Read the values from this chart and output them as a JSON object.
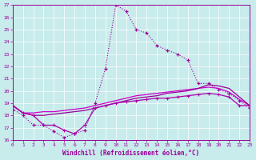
{
  "xlabel": "Windchill (Refroidissement éolien,°C)",
  "bg_color": "#c8ebeb",
  "line_color": "#990099",
  "xlim": [
    0,
    23
  ],
  "ylim": [
    16,
    27
  ],
  "xticks": [
    0,
    1,
    2,
    3,
    4,
    5,
    6,
    7,
    8,
    9,
    10,
    11,
    12,
    13,
    14,
    15,
    16,
    17,
    18,
    19,
    20,
    21,
    22,
    23
  ],
  "yticks": [
    16,
    17,
    18,
    19,
    20,
    21,
    22,
    23,
    24,
    25,
    26,
    27
  ],
  "line1_x": [
    0,
    1,
    2,
    3,
    4,
    5,
    6,
    7,
    8,
    9,
    10,
    11,
    12,
    13,
    14,
    15,
    16,
    17,
    18,
    19,
    20,
    21,
    22,
    23
  ],
  "line1_y": [
    18.5,
    18.0,
    17.2,
    17.2,
    16.7,
    16.2,
    16.5,
    16.8,
    19.0,
    21.8,
    27.0,
    26.5,
    25.0,
    24.7,
    23.7,
    23.3,
    23.0,
    22.5,
    20.6,
    20.6,
    20.1,
    19.8,
    19.2,
    18.6
  ],
  "line2_x": [
    0,
    1,
    2,
    3,
    4,
    5,
    6,
    7,
    8,
    9,
    10,
    11,
    12,
    13,
    14,
    15,
    16,
    17,
    18,
    19,
    20,
    21,
    22,
    23
  ],
  "line2_y": [
    18.8,
    18.2,
    18.2,
    18.3,
    18.3,
    18.4,
    18.5,
    18.6,
    18.8,
    19.0,
    19.2,
    19.4,
    19.6,
    19.7,
    19.8,
    19.9,
    20.0,
    20.1,
    20.2,
    20.3,
    20.2,
    19.9,
    19.3,
    18.8
  ],
  "line3_x": [
    0,
    1,
    2,
    3,
    4,
    5,
    6,
    7,
    8,
    9,
    10,
    11,
    12,
    13,
    14,
    15,
    16,
    17,
    18,
    19,
    20,
    21,
    22,
    23
  ],
  "line3_y": [
    18.8,
    18.2,
    18.0,
    18.0,
    18.1,
    18.2,
    18.3,
    18.4,
    18.6,
    18.8,
    19.0,
    19.2,
    19.4,
    19.5,
    19.6,
    19.8,
    19.9,
    20.0,
    20.2,
    20.5,
    20.4,
    20.2,
    19.5,
    18.8
  ],
  "line4_x": [
    0,
    1,
    2,
    3,
    4,
    5,
    6,
    7,
    8,
    9,
    10,
    11,
    12,
    13,
    14,
    15,
    16,
    17,
    18,
    19,
    20,
    21,
    22,
    23
  ],
  "line4_y": [
    18.8,
    18.2,
    18.0,
    17.2,
    17.2,
    16.8,
    16.5,
    17.2,
    18.6,
    18.8,
    19.0,
    19.1,
    19.2,
    19.3,
    19.4,
    19.4,
    19.5,
    19.6,
    19.7,
    19.8,
    19.7,
    19.5,
    18.8,
    18.8
  ]
}
